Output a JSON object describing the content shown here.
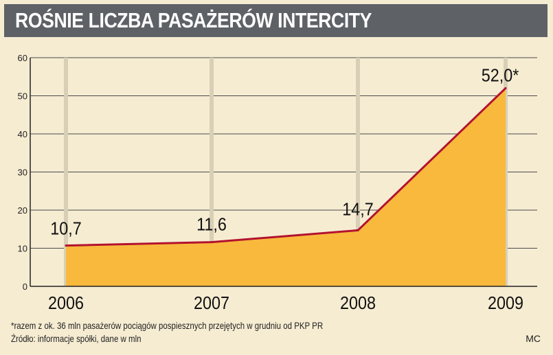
{
  "chart_data": {
    "type": "area",
    "title": "ROŚNIE LICZBA PASAŻERÓW INTERCITY",
    "categories": [
      "2006",
      "2007",
      "2008",
      "2009"
    ],
    "values": [
      10.7,
      11.6,
      14.7,
      52.0
    ],
    "data_labels": [
      "10,7",
      "11,6",
      "14,7",
      "52,0*"
    ],
    "yticks": [
      "0",
      "10",
      "20",
      "30",
      "40",
      "50",
      "60"
    ],
    "ylim": [
      0,
      60
    ],
    "grid": true,
    "colors": {
      "fill": "#f8b93c",
      "line": "#b3122f",
      "grid": "#4a4a4a",
      "plot_background": "#f6ecd2",
      "title_bar": "#5e6166"
    }
  },
  "footnote": "*razem z ok. 36 mln pasażerów pociągów pospiesznych przejętych w grudniu od PKP PR",
  "source": "Źródło: informacje spółki, dane w mln",
  "credit": "MC"
}
